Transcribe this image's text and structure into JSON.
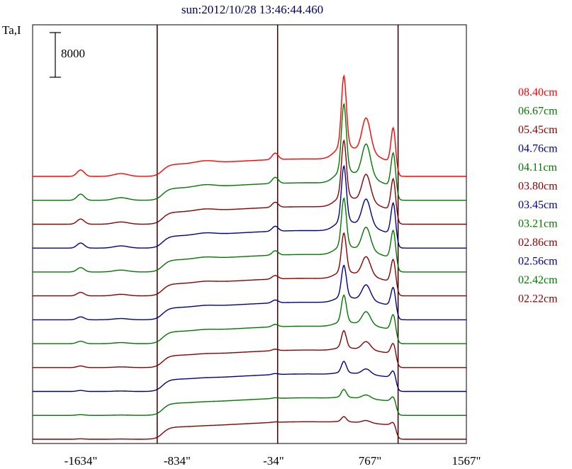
{
  "chart_data": {
    "type": "line",
    "title": "sun:2012/10/28 13:46:44.460",
    "ylabel": "Ta,I",
    "xlabel": "",
    "x_range": [
      -2034,
      1567
    ],
    "x_ticks": [
      -1634,
      -834,
      -34,
      767,
      1567
    ],
    "x_tick_labels": [
      "-1634\"",
      "-834\"",
      "-34\"",
      "767\"",
      "1567\""
    ],
    "vertical_lines": [
      -1000,
      0,
      1000
    ],
    "scale_bar": {
      "label": "8000",
      "value": 8000
    },
    "series": [
      {
        "name": "08.40cm",
        "color": "#ff0000",
        "baseline": 0,
        "peak_scale": 1.0,
        "limb_scale": 1.0
      },
      {
        "name": "06.67cm",
        "color": "#007700",
        "baseline": 0,
        "peak_scale": 0.95,
        "limb_scale": 1.05
      },
      {
        "name": "05.45cm",
        "color": "#880000",
        "baseline": 0,
        "peak_scale": 0.8,
        "limb_scale": 1.4
      },
      {
        "name": "04.76cm",
        "color": "#000088",
        "baseline": 0,
        "peak_scale": 0.78,
        "limb_scale": 1.45
      },
      {
        "name": "04.11cm",
        "color": "#007700",
        "baseline": 0,
        "peak_scale": 0.68,
        "limb_scale": 1.35
      },
      {
        "name": "03.80cm",
        "color": "#880000",
        "baseline": 0,
        "peak_scale": 0.55,
        "limb_scale": 1.15
      },
      {
        "name": "03.45cm",
        "color": "#000088",
        "baseline": 0,
        "peak_scale": 0.45,
        "limb_scale": 0.95
      },
      {
        "name": "03.21cm",
        "color": "#007700",
        "baseline": 0,
        "peak_scale": 0.38,
        "limb_scale": 0.75
      },
      {
        "name": "02.86cm",
        "color": "#880000",
        "baseline": 0,
        "peak_scale": 0.24,
        "limb_scale": 0.6
      },
      {
        "name": "02.56cm",
        "color": "#000088",
        "baseline": 0,
        "peak_scale": 0.16,
        "limb_scale": 0.4
      },
      {
        "name": "02.42cm",
        "color": "#007700",
        "baseline": 0,
        "peak_scale": 0.11,
        "limb_scale": 0.28
      },
      {
        "name": "02.22cm",
        "color": "#880000",
        "baseline": 0,
        "peak_scale": 0.07,
        "limb_scale": 0.2
      }
    ]
  }
}
